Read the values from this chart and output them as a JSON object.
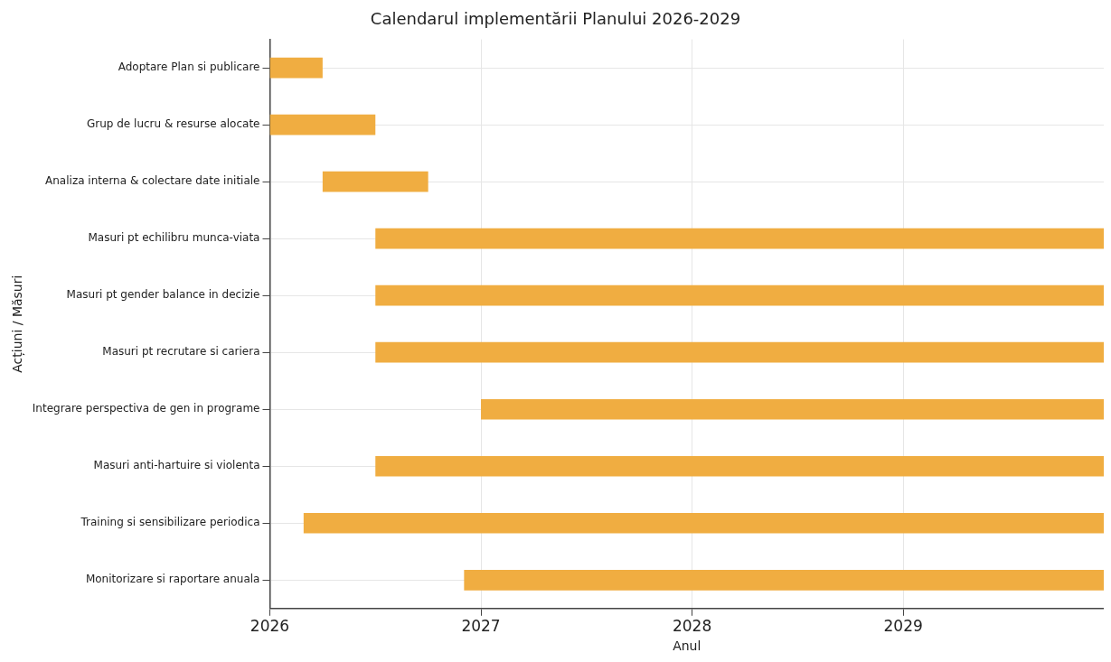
{
  "chart_data": {
    "type": "bar",
    "orientation": "horizontal",
    "title": "Calendarul implementării Planului 2026-2029",
    "xlabel": "Anul",
    "ylabel": "Acțiuni / Măsuri",
    "categories": [
      "Adoptare Plan si publicare",
      "Grup de lucru & resurse alocate",
      "Analiza interna & colectare date initiale",
      "Masuri pt echilibru munca-viata",
      "Masuri pt gender balance in decizie",
      "Masuri pt recrutare si cariera",
      "Integrare perspectiva de gen in programe",
      "Masuri anti-hartuire si violenta",
      "Training si sensibilizare periodica",
      "Monitorizare si raportare anuala"
    ],
    "base": [
      2026,
      2026,
      2026.25,
      2026.5,
      2026.5,
      2026.5,
      2027,
      2026.5,
      2026.16,
      2026.92
    ],
    "values": [
      0.25,
      0.5,
      0.5,
      3.45,
      3.45,
      3.45,
      2.95,
      3.45,
      3.79,
      3.03
    ],
    "color": "#f0ad41",
    "xlim": [
      2026,
      2029.95
    ],
    "xticks": [
      2026,
      2027,
      2028,
      2029
    ],
    "grid": true
  }
}
